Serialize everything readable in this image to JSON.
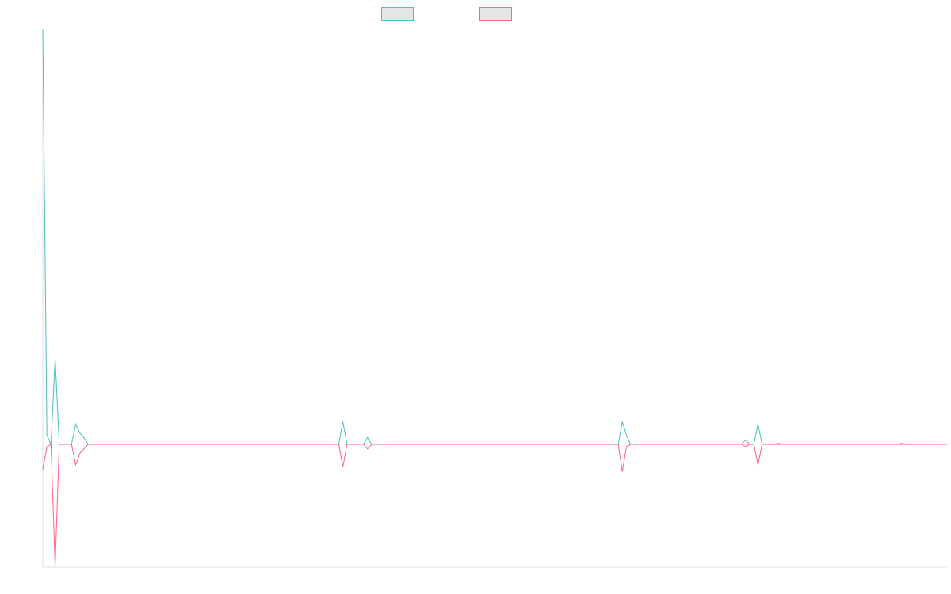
{
  "chart_data": {
    "type": "line",
    "title": "",
    "xlabel": "",
    "ylabel": "",
    "x_count": 221,
    "ylim": [
      -5.4,
      18.3
    ],
    "grid": false,
    "legend_position": "top",
    "series": [
      {
        "color": "#4bc0c0",
        "points": [
          [
            0,
            18.3
          ],
          [
            1,
            0.4
          ],
          [
            2,
            0.0
          ],
          [
            3,
            3.8
          ],
          [
            4,
            0.0
          ],
          [
            5,
            0.0
          ],
          [
            6,
            0.0
          ],
          [
            7,
            0.0
          ],
          [
            8,
            0.9
          ],
          [
            9,
            0.5
          ],
          [
            10,
            0.3
          ],
          [
            11,
            0.0
          ],
          [
            72,
            0.0
          ],
          [
            73,
            1.0
          ],
          [
            74,
            0.0
          ],
          [
            78,
            0.0
          ],
          [
            79,
            0.3
          ],
          [
            80,
            0.0
          ],
          [
            140,
            0.0
          ],
          [
            141,
            1.0
          ],
          [
            142,
            0.4
          ],
          [
            143,
            0.0
          ],
          [
            170,
            0.0
          ],
          [
            171,
            0.2
          ],
          [
            172,
            0.0
          ],
          [
            173,
            0.0
          ],
          [
            174,
            0.9
          ],
          [
            175,
            0.0
          ],
          [
            178,
            0.0
          ],
          [
            179,
            0.05
          ],
          [
            180,
            0.0
          ],
          [
            208,
            0.0
          ],
          [
            209,
            0.05
          ],
          [
            210,
            0.0
          ],
          [
            220,
            0.0
          ]
        ]
      },
      {
        "color": "#ff6384",
        "points": [
          [
            0,
            -1.1
          ],
          [
            1,
            -0.1
          ],
          [
            2,
            0.0
          ],
          [
            3,
            -5.4
          ],
          [
            4,
            0.0
          ],
          [
            5,
            0.0
          ],
          [
            6,
            0.0
          ],
          [
            7,
            0.0
          ],
          [
            8,
            -0.9
          ],
          [
            9,
            -0.4
          ],
          [
            10,
            -0.2
          ],
          [
            11,
            0.0
          ],
          [
            72,
            0.0
          ],
          [
            73,
            -1.0
          ],
          [
            74,
            0.0
          ],
          [
            78,
            0.0
          ],
          [
            79,
            -0.2
          ],
          [
            80,
            0.0
          ],
          [
            140,
            0.0
          ],
          [
            141,
            -1.2
          ],
          [
            142,
            -0.1
          ],
          [
            143,
            0.0
          ],
          [
            170,
            0.0
          ],
          [
            171,
            -0.1
          ],
          [
            172,
            0.0
          ],
          [
            173,
            0.0
          ],
          [
            174,
            -0.9
          ],
          [
            175,
            0.0
          ],
          [
            220,
            0.0
          ]
        ]
      }
    ]
  }
}
